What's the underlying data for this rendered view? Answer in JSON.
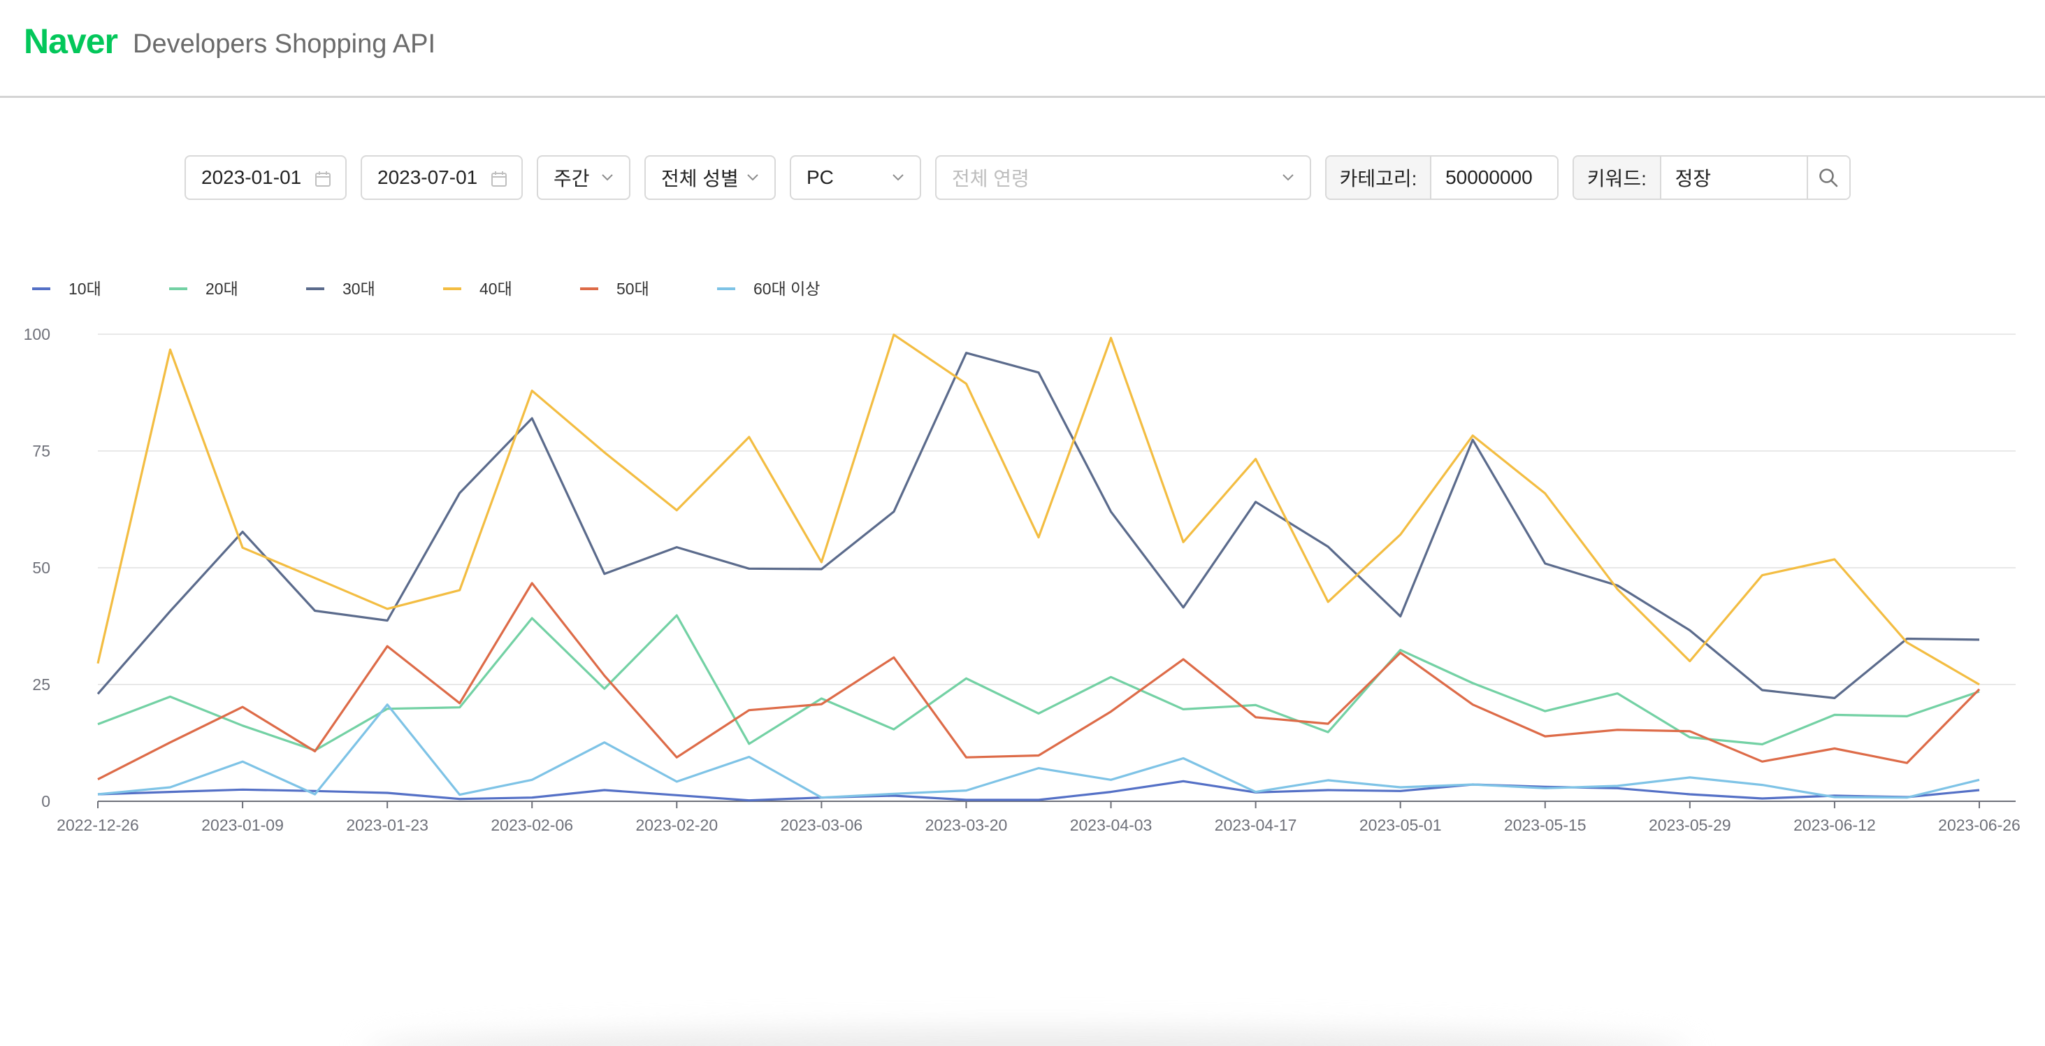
{
  "header": {
    "brand": "Naver",
    "title": "Developers Shopping API"
  },
  "filters": {
    "start_date": "2023-01-01",
    "end_date": "2023-07-01",
    "time_unit": "주간",
    "gender": "전체 성별",
    "device": "PC",
    "ages_placeholder": "전체 연령",
    "category_label": "카테고리:",
    "category_value": "50000000",
    "keyword_label": "키워드:",
    "keyword_value": "정장"
  },
  "chart_data": {
    "type": "line",
    "x": [
      "2022-12-26",
      "2023-01-02",
      "2023-01-09",
      "2023-01-16",
      "2023-01-23",
      "2023-01-30",
      "2023-02-06",
      "2023-02-13",
      "2023-02-20",
      "2023-02-27",
      "2023-03-06",
      "2023-03-13",
      "2023-03-20",
      "2023-03-27",
      "2023-04-03",
      "2023-04-10",
      "2023-04-17",
      "2023-04-24",
      "2023-05-01",
      "2023-05-08",
      "2023-05-15",
      "2023-05-22",
      "2023-05-29",
      "2023-06-05",
      "2023-06-12",
      "2023-06-19",
      "2023-06-26"
    ],
    "xticks": [
      "2022-12-26",
      "2023-01-09",
      "2023-01-23",
      "2023-02-06",
      "2023-02-20",
      "2023-03-06",
      "2023-03-20",
      "2023-04-03",
      "2023-04-17",
      "2023-05-01",
      "2023-05-15",
      "2023-05-29",
      "2023-06-12",
      "2023-06-26"
    ],
    "yticks": [
      0,
      25,
      50,
      75,
      100
    ],
    "ylim": [
      0,
      100
    ],
    "grid": true,
    "legend": "top-left",
    "series": [
      {
        "name": "10대",
        "color": "#5470c6",
        "values": [
          1.5,
          2.0,
          2.5,
          2.2,
          1.8,
          0.5,
          0.8,
          2.4,
          1.3,
          0.2,
          0.8,
          1.2,
          0.3,
          0.3,
          2.0,
          4.3,
          1.9,
          2.4,
          2.2,
          3.6,
          3.1,
          2.8,
          1.5,
          0.6,
          1.2,
          0.9,
          2.4
        ]
      },
      {
        "name": "20대",
        "color": "#91cc75",
        "stroke": "#73d1a4",
        "values": [
          16.5,
          22.4,
          16.2,
          10.9,
          19.8,
          20.1,
          39.2,
          24.1,
          39.8,
          12.3,
          22.0,
          15.4,
          26.3,
          18.8,
          26.6,
          19.7,
          20.6,
          14.8,
          32.4,
          25.3,
          19.3,
          23.1,
          13.7,
          12.2,
          18.5,
          18.2,
          23.5
        ]
      },
      {
        "name": "30대",
        "color": "#5b6b8c",
        "values": [
          23.0,
          40.7,
          57.7,
          40.8,
          38.7,
          66.0,
          82.0,
          48.7,
          54.4,
          49.8,
          49.7,
          62.0,
          96.0,
          91.8,
          62.0,
          41.5,
          64.1,
          54.5,
          39.6,
          77.4,
          50.9,
          46.2,
          36.6,
          23.8,
          22.1,
          34.8,
          34.6
        ]
      },
      {
        "name": "40대",
        "color": "#f3bd42",
        "values": [
          29.5,
          96.7,
          54.3,
          47.8,
          41.2,
          45.2,
          87.9,
          74.7,
          62.3,
          78.0,
          51.2,
          99.9,
          89.4,
          56.5,
          99.2,
          55.5,
          73.3,
          42.7,
          57.1,
          78.3,
          65.9,
          45.4,
          30.0,
          48.4,
          51.8,
          34.0,
          25.0
        ]
      },
      {
        "name": "50대",
        "color": "#dd6b48",
        "values": [
          4.7,
          12.6,
          20.2,
          10.7,
          33.2,
          21.0,
          46.7,
          26.9,
          9.4,
          19.5,
          20.8,
          30.8,
          9.4,
          9.8,
          19.2,
          30.4,
          18.0,
          16.6,
          31.8,
          20.7,
          13.9,
          15.3,
          15.0,
          8.5,
          11.3,
          8.2,
          24.0
        ]
      },
      {
        "name": "60대 이상",
        "color": "#7ec3e6",
        "values": [
          1.5,
          3.0,
          8.5,
          1.5,
          20.7,
          1.4,
          4.6,
          12.6,
          4.2,
          9.5,
          0.8,
          1.6,
          2.3,
          7.1,
          4.6,
          9.2,
          2.0,
          4.5,
          3.0,
          3.6,
          2.8,
          3.3,
          5.1,
          3.5,
          0.9,
          0.8,
          4.6
        ]
      }
    ]
  }
}
